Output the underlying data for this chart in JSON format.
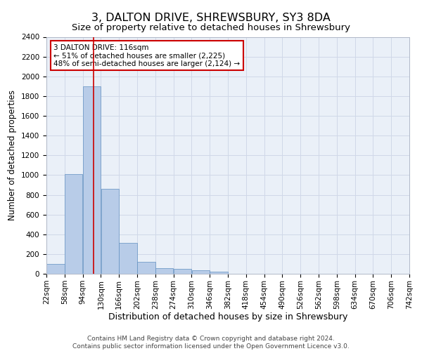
{
  "title": "3, DALTON DRIVE, SHREWSBURY, SY3 8DA",
  "subtitle": "Size of property relative to detached houses in Shrewsbury",
  "xlabel": "Distribution of detached houses by size in Shrewsbury",
  "ylabel": "Number of detached properties",
  "footer_line1": "Contains HM Land Registry data © Crown copyright and database right 2024.",
  "footer_line2": "Contains public sector information licensed under the Open Government Licence v3.0.",
  "annotation_line1": "3 DALTON DRIVE: 116sqm",
  "annotation_line2": "← 51% of detached houses are smaller (2,225)",
  "annotation_line3": "48% of semi-detached houses are larger (2,124) →",
  "bin_edges": [
    22,
    58,
    94,
    130,
    166,
    202,
    238,
    274,
    310,
    346,
    382,
    418,
    454,
    490,
    526,
    562,
    598,
    634,
    670,
    706,
    742
  ],
  "bar_values": [
    100,
    1010,
    1900,
    860,
    315,
    120,
    60,
    52,
    35,
    20,
    0,
    0,
    0,
    0,
    0,
    0,
    0,
    0,
    0,
    0
  ],
  "bar_color": "#b8ccе8",
  "bar_edge_color": "#6090c0",
  "vline_color": "#cc0000",
  "vline_x": 116,
  "ylim": [
    0,
    2400
  ],
  "yticks": [
    0,
    200,
    400,
    600,
    800,
    1000,
    1200,
    1400,
    1600,
    1800,
    2000,
    2200,
    2400
  ],
  "grid_color": "#d0d8e8",
  "bg_color": "#eaf0f8",
  "annotation_box_color": "#cc0000",
  "title_fontsize": 11.5,
  "subtitle_fontsize": 9.5,
  "xlabel_fontsize": 9,
  "ylabel_fontsize": 8.5,
  "tick_fontsize": 7.5,
  "annotation_fontsize": 7.5,
  "footer_fontsize": 6.5
}
